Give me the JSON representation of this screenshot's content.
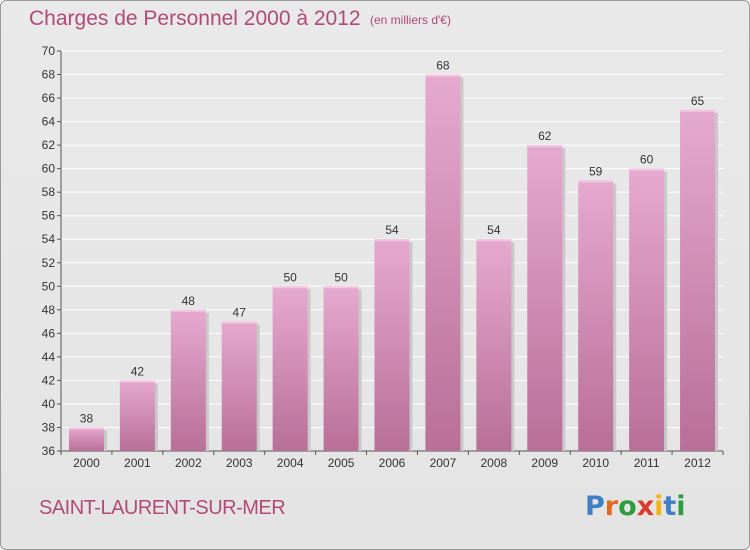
{
  "header": {
    "title": "Charges de Personnel 2000 à 2012",
    "subtitle": "(en milliers d'€)"
  },
  "footer": {
    "commune": "SAINT-LAURENT-SUR-MER",
    "logo_letters": [
      "P",
      "r",
      "o",
      "x",
      "i",
      "t",
      "i"
    ]
  },
  "colors": {
    "bar_light": "#e6a9cf",
    "bar_dark": "#b86f98",
    "title": "#b04a78"
  },
  "chart_data": {
    "type": "bar",
    "title": "Charges de Personnel 2000 à 2012",
    "subtitle": "(en milliers d'€)",
    "categories": [
      "2000",
      "2001",
      "2002",
      "2003",
      "2004",
      "2005",
      "2006",
      "2007",
      "2008",
      "2009",
      "2010",
      "2011",
      "2012"
    ],
    "values": [
      38,
      42,
      48,
      47,
      50,
      50,
      54,
      68,
      54,
      62,
      59,
      60,
      65
    ],
    "ylim": [
      36,
      70
    ],
    "yticks": [
      36,
      38,
      40,
      42,
      44,
      46,
      48,
      50,
      52,
      54,
      56,
      58,
      60,
      62,
      64,
      66,
      68,
      70
    ],
    "grid": true,
    "data_labels": true
  }
}
